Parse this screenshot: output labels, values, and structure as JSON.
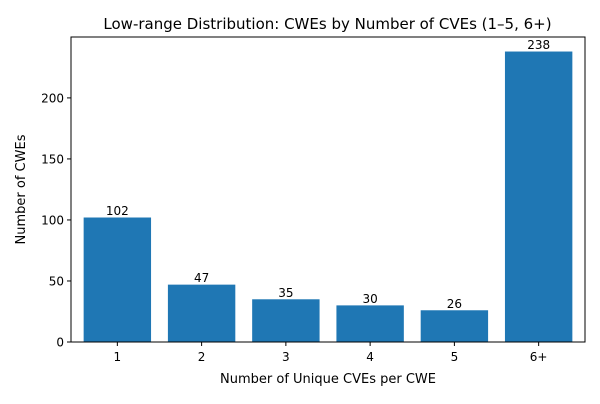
{
  "chart_data": {
    "type": "bar",
    "title": "Low-range Distribution: CWEs by Number of CVEs (1–5, 6+)",
    "xlabel": "Number of Unique CVEs per CWE",
    "ylabel": "Number of CWEs",
    "categories": [
      "1",
      "2",
      "3",
      "4",
      "5",
      "6+"
    ],
    "values": [
      102,
      47,
      35,
      30,
      26,
      238
    ],
    "data_labels": [
      "102",
      "47",
      "35",
      "30",
      "26",
      "238"
    ],
    "ylim": [
      0,
      249.9
    ],
    "yticks": [
      0,
      50,
      100,
      150,
      200
    ],
    "bar_color": "#1f77b4",
    "grid": false,
    "legend": "none"
  }
}
